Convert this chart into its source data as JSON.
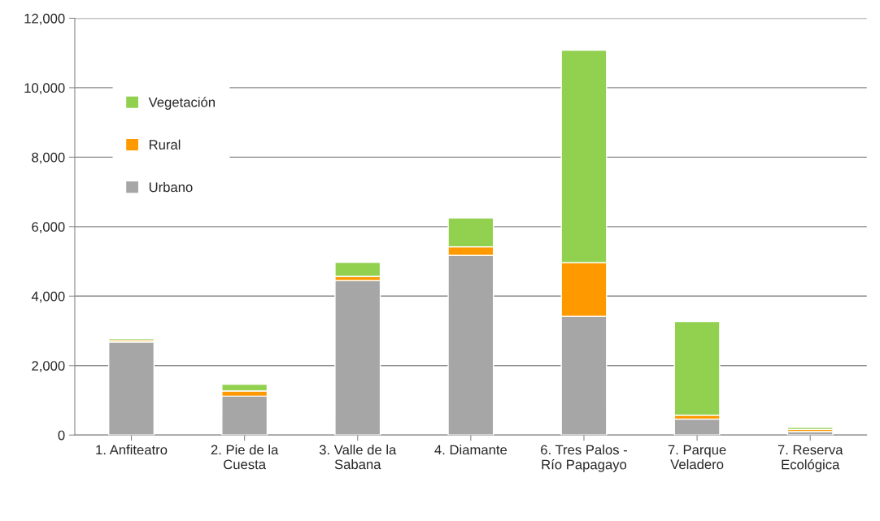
{
  "chart_data": {
    "type": "bar",
    "stacked": true,
    "categories": [
      "1. Anfiteatro",
      "2. Pie de la\nCuesta",
      "3. Valle de la\nSabana",
      "4. Diamante",
      "6. Tres Palos -\nRío Papagayo",
      "7. Parque\nVeladero",
      "7. Reserva\nEcológica"
    ],
    "series": [
      {
        "name": "Urbano",
        "color": "#a6a6a6",
        "values": [
          2680,
          1120,
          4450,
          5170,
          3420,
          460,
          100
        ]
      },
      {
        "name": "Rural",
        "color": "#ff9900",
        "values": [
          50,
          150,
          120,
          250,
          1540,
          110,
          60
        ]
      },
      {
        "name": "Vegetación",
        "color": "#92d050",
        "values": [
          50,
          190,
          400,
          830,
          6120,
          2700,
          60
        ]
      }
    ],
    "ylim": [
      0,
      12000
    ],
    "yticks": [
      {
        "value": 0,
        "label": "0"
      },
      {
        "value": 2000,
        "label": "2,000"
      },
      {
        "value": 4000,
        "label": "4,000"
      },
      {
        "value": 6000,
        "label": "6,000"
      },
      {
        "value": 8000,
        "label": "8,000"
      },
      {
        "value": 10000,
        "label": "10,000"
      },
      {
        "value": 12000,
        "label": "12,000"
      }
    ],
    "grid": "y",
    "legend": "top left"
  }
}
